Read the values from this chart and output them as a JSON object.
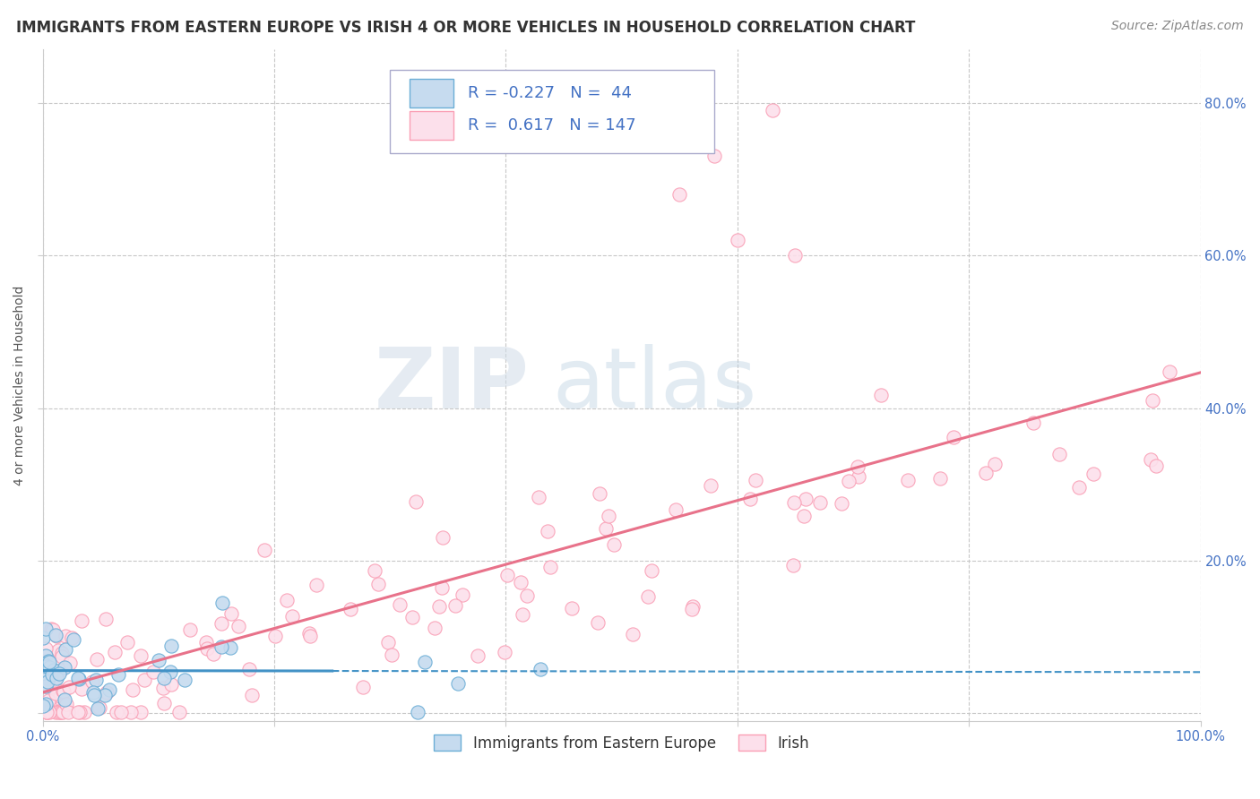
{
  "title": "IMMIGRANTS FROM EASTERN EUROPE VS IRISH 4 OR MORE VEHICLES IN HOUSEHOLD CORRELATION CHART",
  "source": "Source: ZipAtlas.com",
  "ylabel": "4 or more Vehicles in Household",
  "xlim": [
    0.0,
    1.0
  ],
  "ylim": [
    -0.01,
    0.87
  ],
  "x_ticks": [
    0.0,
    0.2,
    0.4,
    0.6,
    0.8,
    1.0
  ],
  "x_tick_labels": [
    "0.0%",
    "",
    "",
    "",
    "",
    "100.0%"
  ],
  "y_ticks": [
    0.0,
    0.2,
    0.4,
    0.6,
    0.8
  ],
  "y_tick_labels_left": [
    "",
    "",
    "",
    "",
    ""
  ],
  "y_tick_labels_right": [
    "",
    "20.0%",
    "40.0%",
    "60.0%",
    "80.0%"
  ],
  "color_blue": "#6baed6",
  "color_blue_line": "#4292c6",
  "color_pink": "#fa9fb5",
  "color_pink_line": "#e8728a",
  "color_blue_scatter_face": "#c6dbef",
  "color_pink_scatter_face": "#fce0eb",
  "watermark_zip": "ZIP",
  "watermark_atlas": "atlas",
  "background_color": "#ffffff",
  "grid_color": "#c8c8c8",
  "title_fontsize": 12,
  "axis_label_fontsize": 10,
  "tick_fontsize": 10.5,
  "source_fontsize": 10,
  "legend_label1": "Immigrants from Eastern Europe",
  "legend_label2": "Irish"
}
